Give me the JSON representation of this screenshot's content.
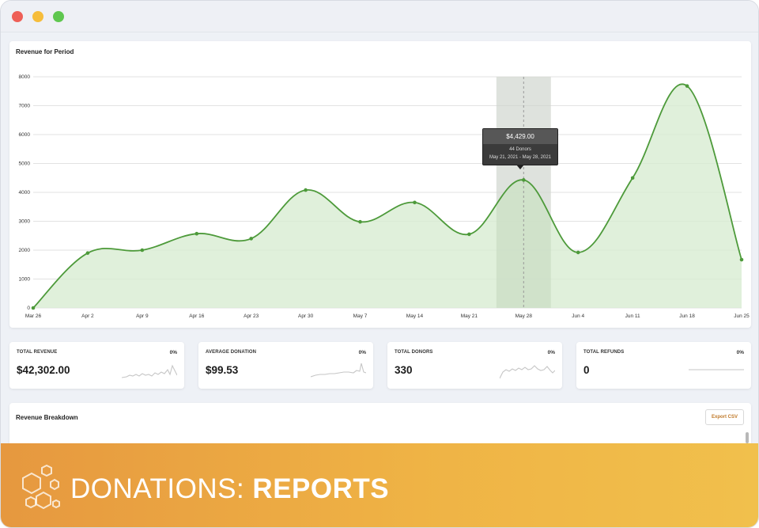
{
  "window": {
    "controls": [
      {
        "name": "close",
        "color": "#ee5f57"
      },
      {
        "name": "minimize",
        "color": "#f6bd3b"
      },
      {
        "name": "maximize",
        "color": "#5fc74f"
      }
    ]
  },
  "chart_data": {
    "type": "area",
    "title": "Revenue for Period",
    "categories": [
      "Mar 26",
      "Apr 2",
      "Apr 9",
      "Apr 16",
      "Apr 23",
      "Apr 30",
      "May 7",
      "May 14",
      "May 21",
      "May 28",
      "Jun 4",
      "Jun 11",
      "Jun 18",
      "Jun 25"
    ],
    "values": [
      0,
      1900,
      2000,
      2570,
      2400,
      4080,
      2980,
      3650,
      2550,
      4429,
      1920,
      4500,
      7680,
      1670
    ],
    "yticks": [
      0,
      1000,
      2000,
      3000,
      4000,
      5000,
      6000,
      7000,
      8000
    ],
    "ylim": [
      0,
      8000
    ],
    "grid": true,
    "colors": {
      "line": "#4d9a3a",
      "fill": "#d8ecd2"
    },
    "highlight_index": 9,
    "tooltip": {
      "value": "$4,429.00",
      "donors": "44 Donors",
      "range": "May 21, 2021 - May 28, 2021"
    }
  },
  "stats": [
    {
      "label": "TOTAL REVENUE",
      "pct": "0%",
      "value": "$42,302.00"
    },
    {
      "label": "AVERAGE DONATION",
      "pct": "0%",
      "value": "$99.53"
    },
    {
      "label": "TOTAL DONORS",
      "pct": "0%",
      "value": "330"
    },
    {
      "label": "TOTAL REFUNDS",
      "pct": "0%",
      "value": "0"
    }
  ],
  "breakdown": {
    "title": "Revenue Breakdown",
    "export_label": "Export CSV"
  },
  "banner": {
    "text_light": "DONATIONS: ",
    "text_bold": "REPORTS",
    "icon": "hexagon-cluster-icon"
  }
}
